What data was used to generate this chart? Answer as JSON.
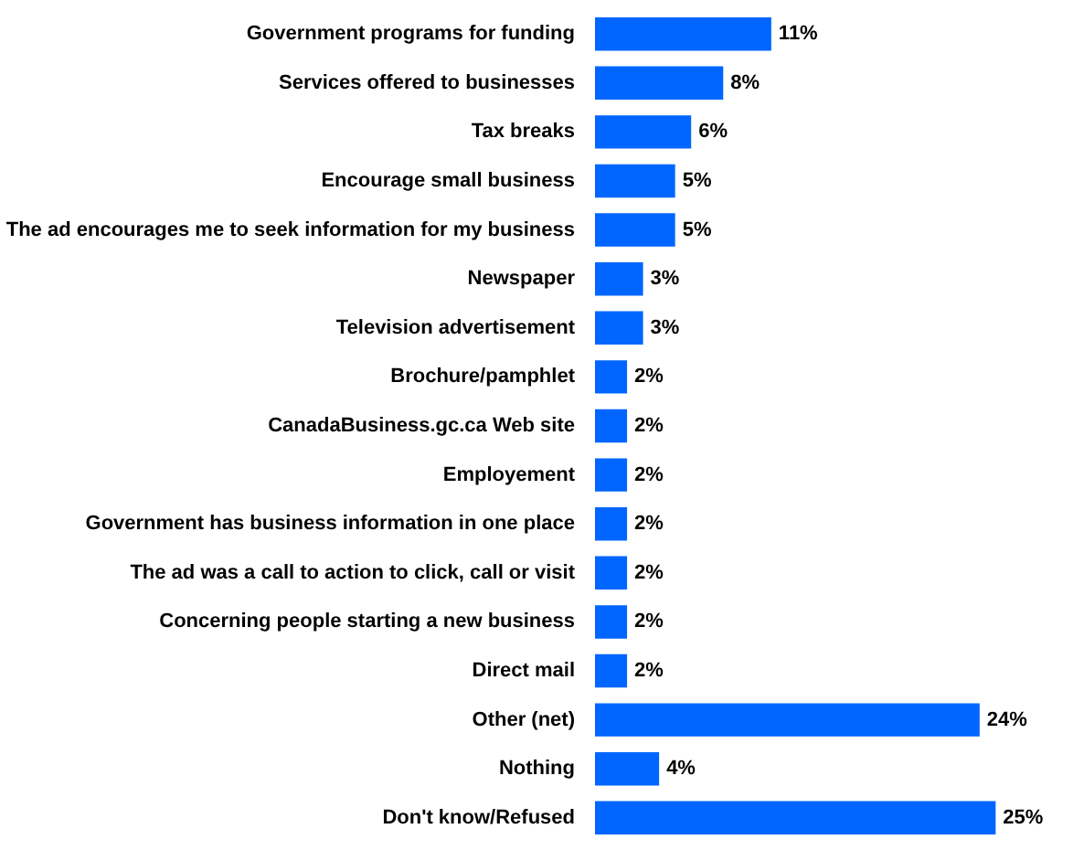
{
  "chart_data": {
    "type": "bar",
    "orientation": "horizontal",
    "categories": [
      "Government programs for funding",
      "Services offered to businesses",
      "Tax breaks",
      "Encourage small business",
      "The ad encourages me to seek information for my business",
      "Newspaper",
      "Television advertisement",
      "Brochure/pamphlet",
      "CanadaBusiness.gc.ca Web site",
      "Employement",
      "Government has business information in one place",
      "The ad was a call to action to click, call or visit",
      "Concerning people starting a new business",
      "Direct mail",
      "Other (net)",
      "Nothing",
      "Don't know/Refused"
    ],
    "values": [
      11,
      8,
      6,
      5,
      5,
      3,
      3,
      2,
      2,
      2,
      2,
      2,
      2,
      2,
      24,
      4,
      25
    ],
    "value_labels": [
      "11%",
      "8%",
      "6%",
      "5%",
      "5%",
      "3%",
      "3%",
      "2%",
      "2%",
      "2%",
      "2%",
      "2%",
      "2%",
      "2%",
      "24%",
      "4%",
      "25%"
    ],
    "color": "#0066ff",
    "tick_labels": "y",
    "grid": false
  }
}
